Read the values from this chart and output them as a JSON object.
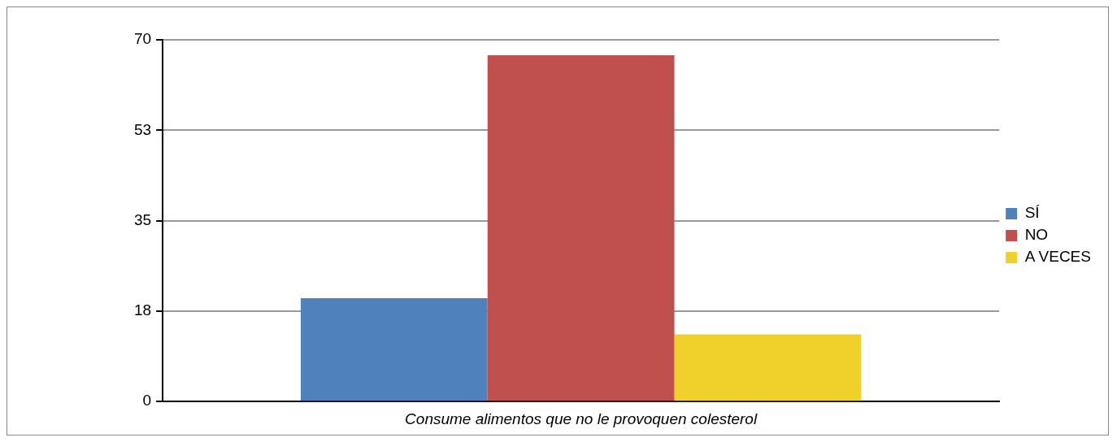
{
  "chart_data": {
    "type": "bar",
    "categories": [
      "Consume alimentos que no le provoquen colesterol"
    ],
    "series": [
      {
        "name": "SÍ",
        "color": "#4f81bd",
        "values": [
          20
        ]
      },
      {
        "name": "NO",
        "color": "#c0504d",
        "values": [
          67
        ]
      },
      {
        "name": "A VECES",
        "color": "#f0d02a",
        "values": [
          13
        ]
      }
    ],
    "ylim": [
      0,
      70
    ],
    "yticks": [
      0,
      {
        "value": 17.5,
        "label": "18"
      },
      35,
      {
        "value": 52.5,
        "label": "53"
      },
      70
    ],
    "grid": "y",
    "legend": "right"
  }
}
